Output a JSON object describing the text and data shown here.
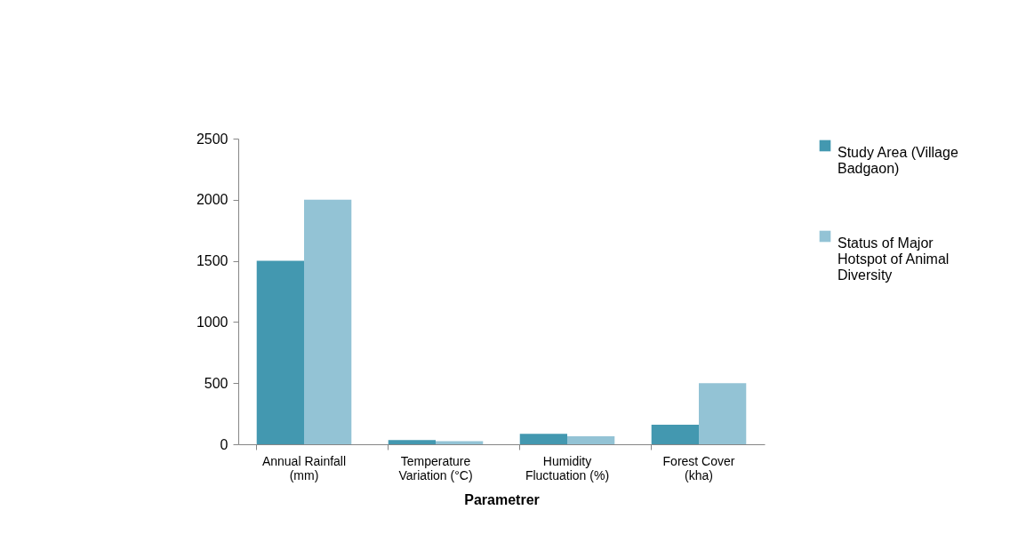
{
  "chart_data": {
    "type": "bar",
    "xlabel": "Parametrer",
    "categories": [
      "Annual Rainfall (mm)",
      "Temperature Variation (°C)",
      "Humidity Fluctuation (%)",
      "Forest Cover (kha)"
    ],
    "series": [
      {
        "name": "Study Area (Village Badgaon)",
        "color": "#4398b0",
        "values": [
          1500,
          35,
          85,
          160
        ]
      },
      {
        "name": "Status of Major Hotspot of Animal Diversity",
        "color": "#93c3d5",
        "values": [
          2000,
          25,
          65,
          500
        ]
      }
    ],
    "ylim": [
      0,
      2500
    ],
    "yticks": [
      0,
      500,
      1000,
      1500,
      2000,
      2500
    ],
    "grid": false,
    "legend": "right"
  }
}
